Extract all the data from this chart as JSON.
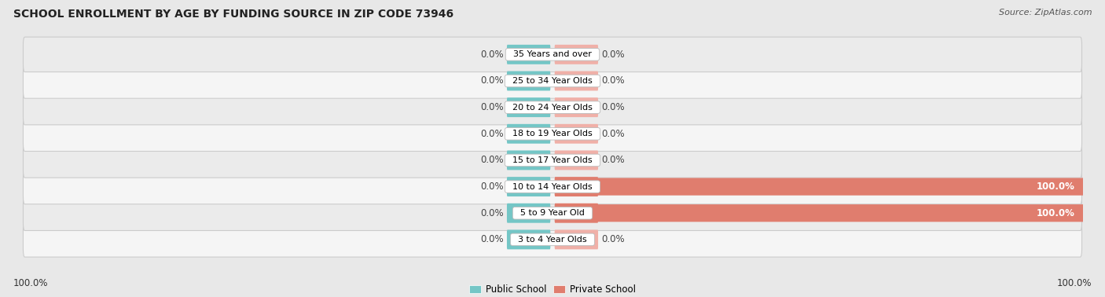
{
  "title": "SCHOOL ENROLLMENT BY AGE BY FUNDING SOURCE IN ZIP CODE 73946",
  "source": "Source: ZipAtlas.com",
  "categories": [
    "3 to 4 Year Olds",
    "5 to 9 Year Old",
    "10 to 14 Year Olds",
    "15 to 17 Year Olds",
    "18 to 19 Year Olds",
    "20 to 24 Year Olds",
    "25 to 34 Year Olds",
    "35 Years and over"
  ],
  "public_values": [
    0.0,
    0.0,
    0.0,
    0.0,
    0.0,
    0.0,
    0.0,
    0.0
  ],
  "private_values": [
    0.0,
    100.0,
    100.0,
    0.0,
    0.0,
    0.0,
    0.0,
    0.0
  ],
  "left_axis_label": "100.0%",
  "right_axis_label": "100.0%",
  "public_color": "#74c6c6",
  "private_color": "#e07d6e",
  "private_zero_color": "#f0b0a8",
  "bg_color": "#e8e8e8",
  "row_color_even": "#f5f5f5",
  "row_color_odd": "#ebebeb",
  "row_outline_color": "#cccccc",
  "title_fontsize": 10,
  "source_fontsize": 8,
  "label_fontsize": 8.5,
  "cat_fontsize": 8,
  "mini_bar_width": 8.0,
  "xlim": 100
}
